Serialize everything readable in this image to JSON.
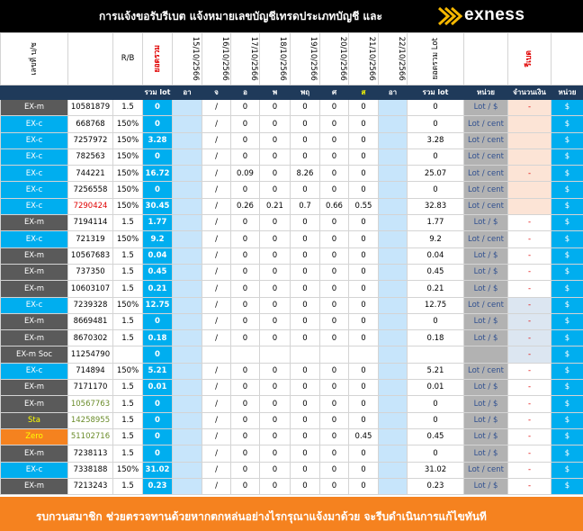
{
  "header": {
    "title": "การแจ้งขอรับรีเบต  แจ้งหมายเลขบัญชีเทรดประเภทบัญชี และ",
    "brand": "exness"
  },
  "columns": {
    "name": "เลขที่ บ/ช",
    "rb": "R/B",
    "total": "ยอดรวม",
    "dates": [
      "15/10/2566",
      "16/10/2566",
      "17/10/2566",
      "18/10/2566",
      "19/10/2566",
      "20/10/2566",
      "21/10/2566",
      "22/10/2566"
    ],
    "sum_lot": "ยอดรวม Lot",
    "rebate": "รีเบต"
  },
  "subheader": {
    "total_lot": "รวม lot",
    "days": [
      "อา",
      "จ",
      "อ",
      "พ",
      "พฤ",
      "ศ",
      "ส",
      "อา"
    ],
    "sum_lot": "รวม lot",
    "unit": "หน่วย",
    "count": "จำนวนเงิน",
    "unit2": "หน่วย"
  },
  "rows": [
    {
      "type": "EX-m",
      "acc": "10581879",
      "rb": "1.5",
      "total": "0",
      "vals": [
        "",
        "/",
        "0",
        "0",
        "0",
        "0",
        "0",
        ""
      ],
      "sum": "0",
      "unit": "Lot / $",
      "cnt": "-",
      "dol": "$",
      "color": "dg",
      "cntbg": "peach"
    },
    {
      "type": "EX-c",
      "acc": "668768",
      "rb": "150%",
      "total": "0",
      "vals": [
        "",
        "/",
        "0",
        "0",
        "0",
        "0",
        "0",
        ""
      ],
      "sum": "0",
      "unit": "Lot / cent",
      "cnt": "",
      "dol": "$",
      "color": "bl",
      "cntbg": "peach"
    },
    {
      "type": "EX-c",
      "acc": "7257972",
      "rb": "150%",
      "total": "3.28",
      "vals": [
        "",
        "/",
        "0",
        "0",
        "0",
        "0",
        "0",
        ""
      ],
      "sum": "3.28",
      "unit": "Lot / cent",
      "cnt": "",
      "dol": "$",
      "color": "bl",
      "cntbg": "peach"
    },
    {
      "type": "EX-c",
      "acc": "782563",
      "rb": "150%",
      "total": "0",
      "vals": [
        "",
        "/",
        "0",
        "0",
        "0",
        "0",
        "0",
        ""
      ],
      "sum": "0",
      "unit": "Lot / cent",
      "cnt": "",
      "dol": "$",
      "color": "bl",
      "cntbg": "peach"
    },
    {
      "type": "EX-c",
      "acc": "744221",
      "rb": "150%",
      "total": "16.72",
      "vals": [
        "",
        "/",
        "0.09",
        "0",
        "8.26",
        "0",
        "0",
        ""
      ],
      "sum": "25.07",
      "unit": "Lot / cent",
      "cnt": "-",
      "dol": "$",
      "color": "bl",
      "cntbg": "peach"
    },
    {
      "type": "EX-c",
      "acc": "7256558",
      "rb": "150%",
      "total": "0",
      "vals": [
        "",
        "/",
        "0",
        "0",
        "0",
        "0",
        "0",
        ""
      ],
      "sum": "0",
      "unit": "Lot / cent",
      "cnt": "",
      "dol": "$",
      "color": "bl",
      "cntbg": "peach"
    },
    {
      "type": "EX-c",
      "acc": "7290424",
      "rb": "150%",
      "total": "30.45",
      "vals": [
        "",
        "/",
        "0.26",
        "0.21",
        "0.7",
        "0.66",
        "0.55",
        ""
      ],
      "sum": "32.83",
      "unit": "Lot / cent",
      "cnt": "",
      "dol": "$",
      "color": "bl",
      "cntbg": "peach",
      "accred": true
    },
    {
      "type": "EX-m",
      "acc": "7194114",
      "rb": "1.5",
      "total": "1.77",
      "vals": [
        "",
        "/",
        "0",
        "0",
        "0",
        "0",
        "0",
        ""
      ],
      "sum": "1.77",
      "unit": "Lot / $",
      "cnt": "-",
      "dol": "$",
      "color": "dg",
      "cntbg": "white"
    },
    {
      "type": "EX-c",
      "acc": "721319",
      "rb": "150%",
      "total": "9.2",
      "vals": [
        "",
        "/",
        "0",
        "0",
        "0",
        "0",
        "0",
        ""
      ],
      "sum": "9.2",
      "unit": "Lot / cent",
      "cnt": "-",
      "dol": "$",
      "color": "bl",
      "cntbg": "white"
    },
    {
      "type": "EX-m",
      "acc": "10567683",
      "rb": "1.5",
      "total": "0.04",
      "vals": [
        "",
        "/",
        "0",
        "0",
        "0",
        "0",
        "0",
        ""
      ],
      "sum": "0.04",
      "unit": "Lot / $",
      "cnt": "-",
      "dol": "$",
      "color": "dg",
      "cntbg": "white"
    },
    {
      "type": "EX-m",
      "acc": "737350",
      "rb": "1.5",
      "total": "0.45",
      "vals": [
        "",
        "/",
        "0",
        "0",
        "0",
        "0",
        "0",
        ""
      ],
      "sum": "0.45",
      "unit": "Lot / $",
      "cnt": "-",
      "dol": "$",
      "color": "dg",
      "cntbg": "white"
    },
    {
      "type": "EX-m",
      "acc": "10603107",
      "rb": "1.5",
      "total": "0.21",
      "vals": [
        "",
        "/",
        "0",
        "0",
        "0",
        "0",
        "0",
        ""
      ],
      "sum": "0.21",
      "unit": "Lot / $",
      "cnt": "-",
      "dol": "$",
      "color": "dg",
      "cntbg": "white"
    },
    {
      "type": "EX-c",
      "acc": "7239328",
      "rb": "150%",
      "total": "12.75",
      "vals": [
        "",
        "/",
        "0",
        "0",
        "0",
        "0",
        "0",
        ""
      ],
      "sum": "12.75",
      "unit": "Lot / cent",
      "cnt": "-",
      "dol": "$",
      "color": "bl",
      "cntbg": "blue"
    },
    {
      "type": "EX-m",
      "acc": "8669481",
      "rb": "1.5",
      "total": "0",
      "vals": [
        "",
        "/",
        "0",
        "0",
        "0",
        "0",
        "0",
        ""
      ],
      "sum": "0",
      "unit": "Lot / $",
      "cnt": "-",
      "dol": "$",
      "color": "dg",
      "cntbg": "blue"
    },
    {
      "type": "EX-m",
      "acc": "8670302",
      "rb": "1.5",
      "total": "0.18",
      "vals": [
        "",
        "/",
        "0",
        "0",
        "0",
        "0",
        "0",
        ""
      ],
      "sum": "0.18",
      "unit": "Lot / $",
      "cnt": "-",
      "dol": "$",
      "color": "dg",
      "cntbg": "blue"
    },
    {
      "type": "EX-m Soc",
      "acc": "11254790",
      "rb": "",
      "total": "0",
      "vals": [
        "",
        "",
        "",
        "",
        "",
        "",
        "",
        ""
      ],
      "sum": "",
      "unit": "",
      "cnt": "-",
      "dol": "$",
      "color": "dg",
      "cntbg": "blue"
    },
    {
      "type": "EX-c",
      "acc": "714894",
      "rb": "150%",
      "total": "5.21",
      "vals": [
        "",
        "/",
        "0",
        "0",
        "0",
        "0",
        "0",
        ""
      ],
      "sum": "5.21",
      "unit": "Lot / cent",
      "cnt": "-",
      "dol": "$",
      "color": "bl",
      "cntbg": "white"
    },
    {
      "type": "EX-m",
      "acc": "7171170",
      "rb": "1.5",
      "total": "0.01",
      "vals": [
        "",
        "/",
        "0",
        "0",
        "0",
        "0",
        "0",
        ""
      ],
      "sum": "0.01",
      "unit": "Lot / $",
      "cnt": "-",
      "dol": "$",
      "color": "dg",
      "cntbg": "white"
    },
    {
      "type": "EX-m",
      "acc": "10567763",
      "rb": "1.5",
      "total": "0",
      "vals": [
        "",
        "/",
        "0",
        "0",
        "0",
        "0",
        "0",
        ""
      ],
      "sum": "0",
      "unit": "Lot / $",
      "cnt": "-",
      "dol": "$",
      "color": "dg",
      "cntbg": "white",
      "accgrn": true
    },
    {
      "type": "Sta",
      "acc": "14258955",
      "rb": "1.5",
      "total": "0",
      "vals": [
        "",
        "/",
        "0",
        "0",
        "0",
        "0",
        "0",
        ""
      ],
      "sum": "0",
      "unit": "Lot / $",
      "cnt": "-",
      "dol": "$",
      "color": "dg",
      "cntbg": "white",
      "typeylw": true,
      "accgrn": true
    },
    {
      "type": "Zero",
      "acc": "51102716",
      "rb": "1.5",
      "total": "0",
      "vals": [
        "",
        "/",
        "0",
        "0",
        "0",
        "0",
        "0.45",
        ""
      ],
      "sum": "0.45",
      "unit": "Lot / $",
      "cnt": "-",
      "dol": "$",
      "color": "or",
      "cntbg": "white",
      "typeylw": true,
      "accgrn": true
    },
    {
      "type": "EX-m",
      "acc": "7238113",
      "rb": "1.5",
      "total": "0",
      "vals": [
        "",
        "/",
        "0",
        "0",
        "0",
        "0",
        "0",
        ""
      ],
      "sum": "0",
      "unit": "Lot / $",
      "cnt": "-",
      "dol": "$",
      "color": "dg",
      "cntbg": "white"
    },
    {
      "type": "EX-c",
      "acc": "7338188",
      "rb": "150%",
      "total": "31.02",
      "vals": [
        "",
        "/",
        "0",
        "0",
        "0",
        "0",
        "0",
        ""
      ],
      "sum": "31.02",
      "unit": "Lot / cent",
      "cnt": "-",
      "dol": "$",
      "color": "bl",
      "cntbg": "white"
    },
    {
      "type": "EX-m",
      "acc": "7213243",
      "rb": "1.5",
      "total": "0.23",
      "vals": [
        "",
        "/",
        "0",
        "0",
        "0",
        "0",
        "0",
        ""
      ],
      "sum": "0.23",
      "unit": "Lot / $",
      "cnt": "-",
      "dol": "$",
      "color": "dg",
      "cntbg": "white"
    }
  ],
  "footer": {
    "text": "รบกวนสมาชิก ช่วยตรวจทานด้วยหากตกหล่นอย่างไรกรุณาแจ้งมาด้วย จะรีบดำเนินการแก้ไขทันที"
  }
}
